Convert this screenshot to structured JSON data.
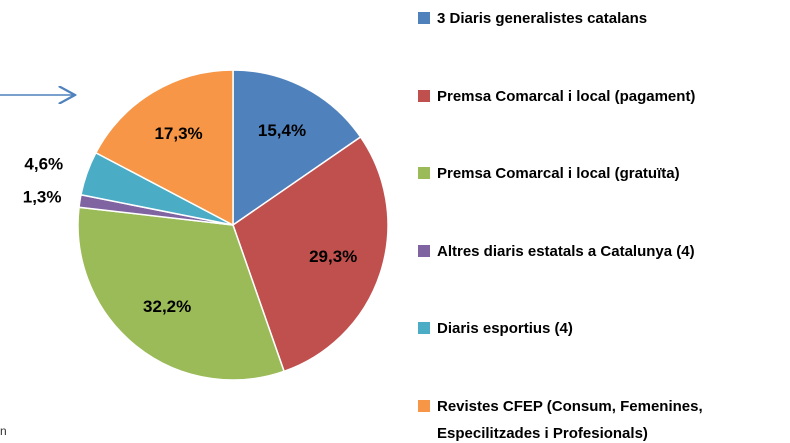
{
  "chart_data": {
    "type": "pie",
    "categories": [
      "3 Diaris generalistes catalans",
      "Premsa Comarcal i local (pagament)",
      "Premsa Comarcal i local (gratuïta)",
      "Altres diaris estatals a Catalunya (4)",
      "Diaris esportius (4)",
      "Revistes CFEP (Consum, Femenines, Especilitzades i Profesionals)"
    ],
    "values": [
      15.4,
      29.3,
      32.2,
      1.3,
      4.6,
      17.3
    ],
    "value_labels": [
      "15,4%",
      "29,3%",
      "32,2%",
      "1,3%",
      "4,6%",
      "17,3%"
    ],
    "colors": [
      "#4f81bd",
      "#c0504d",
      "#9bbb59",
      "#8064a2",
      "#4bacc6",
      "#f79646"
    ],
    "legend": "right"
  },
  "annotations": [
    "n"
  ]
}
